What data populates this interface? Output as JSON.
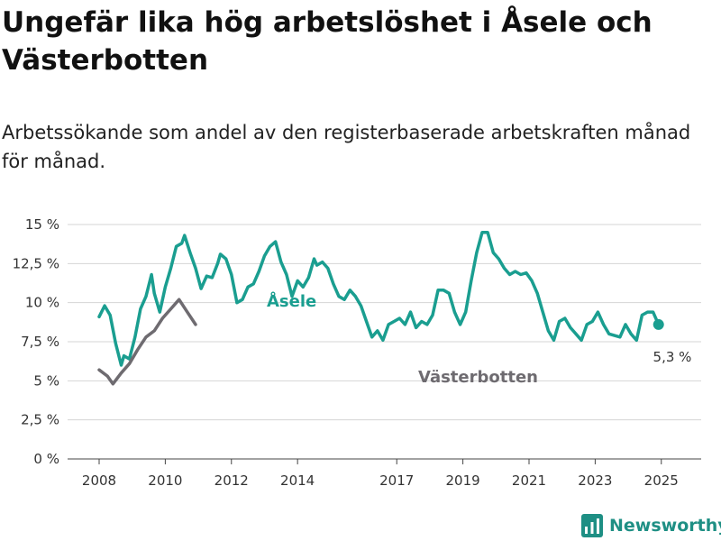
{
  "title": "Ungefär lika hög arbetslöshet i Åsele och Västerbotten",
  "subtitle": "Arbetssökande som andel av den registerbaserade arbetskraften månad för månad.",
  "brand": "Newsworthy",
  "colors": {
    "asele": "#1a9e90",
    "vasterbotten": "#6e6b70",
    "grid": "#d4d4d4",
    "axis": "#444444",
    "logo": "#1e8f84"
  },
  "chart_data": {
    "type": "line",
    "title": "Ungefär lika hög arbetslöshet i Åsele och Västerbotten",
    "subtitle": "Arbetssökande som andel av den registerbaserade arbetskraften månad för månad.",
    "xlabel": "",
    "ylabel": "",
    "x_ticks": [
      "2008",
      "2010",
      "2012",
      "2014",
      "2017",
      "2019",
      "2021",
      "2023",
      "2025"
    ],
    "xlim": [
      "2008-01",
      "2025-05"
    ],
    "y_ticks": [
      "0 %",
      "2,5 %",
      "5 %",
      "7,5 %",
      "10 %",
      "12,5 %",
      "15 %"
    ],
    "ylim": [
      0,
      15
    ],
    "grid": "horizontal",
    "end_label": "5,3 %",
    "series": [
      {
        "name": "Åsele",
        "points": [
          [
            "2008-01",
            9.1
          ],
          [
            "2008-03",
            9.8
          ],
          [
            "2008-05",
            9.2
          ],
          [
            "2008-07",
            7.4
          ],
          [
            "2008-09",
            6.0
          ],
          [
            "2008-10",
            6.6
          ],
          [
            "2008-12",
            6.4
          ],
          [
            "2009-02",
            7.8
          ],
          [
            "2009-04",
            9.6
          ],
          [
            "2009-06",
            10.4
          ],
          [
            "2009-08",
            11.8
          ],
          [
            "2009-09",
            10.6
          ],
          [
            "2009-11",
            9.4
          ],
          [
            "2010-01",
            11.0
          ],
          [
            "2010-03",
            12.2
          ],
          [
            "2010-05",
            13.6
          ],
          [
            "2010-07",
            13.8
          ],
          [
            "2010-08",
            14.3
          ],
          [
            "2010-10",
            13.2
          ],
          [
            "2010-12",
            12.2
          ],
          [
            "2011-02",
            10.9
          ],
          [
            "2011-04",
            11.7
          ],
          [
            "2011-06",
            11.6
          ],
          [
            "2011-08",
            12.5
          ],
          [
            "2011-09",
            13.1
          ],
          [
            "2011-11",
            12.8
          ],
          [
            "2012-01",
            11.8
          ],
          [
            "2012-03",
            10.0
          ],
          [
            "2012-05",
            10.2
          ],
          [
            "2012-07",
            11.0
          ],
          [
            "2012-09",
            11.2
          ],
          [
            "2012-11",
            12.0
          ],
          [
            "2013-01",
            13.0
          ],
          [
            "2013-03",
            13.6
          ],
          [
            "2013-05",
            13.9
          ],
          [
            "2013-07",
            12.6
          ],
          [
            "2013-09",
            11.8
          ],
          [
            "2013-11",
            10.4
          ],
          [
            "2014-01",
            11.4
          ],
          [
            "2014-03",
            11.0
          ],
          [
            "2014-05",
            11.6
          ],
          [
            "2014-07",
            12.8
          ],
          [
            "2014-08",
            12.4
          ],
          [
            "2014-10",
            12.6
          ],
          [
            "2014-12",
            12.2
          ],
          [
            "2015-02",
            11.2
          ],
          [
            "2015-04",
            10.4
          ],
          [
            "2015-06",
            10.2
          ],
          [
            "2015-08",
            10.8
          ],
          [
            "2015-10",
            10.4
          ],
          [
            "2015-12",
            9.8
          ],
          [
            "2016-02",
            8.8
          ],
          [
            "2016-04",
            7.8
          ],
          [
            "2016-06",
            8.2
          ],
          [
            "2016-08",
            7.6
          ],
          [
            "2016-10",
            8.6
          ],
          [
            "2016-12",
            8.8
          ],
          [
            "2017-02",
            9.0
          ],
          [
            "2017-04",
            8.6
          ],
          [
            "2017-06",
            9.4
          ],
          [
            "2017-08",
            8.4
          ],
          [
            "2017-10",
            8.8
          ],
          [
            "2017-12",
            8.6
          ],
          [
            "2018-02",
            9.2
          ],
          [
            "2018-04",
            10.8
          ],
          [
            "2018-06",
            10.8
          ],
          [
            "2018-08",
            10.6
          ],
          [
            "2018-10",
            9.4
          ],
          [
            "2018-12",
            8.6
          ],
          [
            "2019-02",
            9.4
          ],
          [
            "2019-04",
            11.4
          ],
          [
            "2019-06",
            13.2
          ],
          [
            "2019-08",
            14.5
          ],
          [
            "2019-10",
            14.5
          ],
          [
            "2019-12",
            13.2
          ],
          [
            "2020-02",
            12.8
          ],
          [
            "2020-04",
            12.2
          ],
          [
            "2020-06",
            11.8
          ],
          [
            "2020-08",
            12.0
          ],
          [
            "2020-10",
            11.8
          ],
          [
            "2020-12",
            11.9
          ],
          [
            "2021-02",
            11.4
          ],
          [
            "2021-04",
            10.6
          ],
          [
            "2021-06",
            9.4
          ],
          [
            "2021-08",
            8.2
          ],
          [
            "2021-10",
            7.6
          ],
          [
            "2021-12",
            8.8
          ],
          [
            "2022-02",
            9.0
          ],
          [
            "2022-04",
            8.4
          ],
          [
            "2022-06",
            8.0
          ],
          [
            "2022-08",
            7.6
          ],
          [
            "2022-10",
            8.6
          ],
          [
            "2022-12",
            8.8
          ],
          [
            "2023-02",
            9.4
          ],
          [
            "2023-04",
            8.6
          ],
          [
            "2023-06",
            8.0
          ],
          [
            "2023-08",
            7.9
          ],
          [
            "2023-10",
            7.8
          ],
          [
            "2023-12",
            8.6
          ],
          [
            "2024-02",
            8.0
          ],
          [
            "2024-04",
            7.6
          ],
          [
            "2024-06",
            9.2
          ],
          [
            "2024-08",
            9.4
          ],
          [
            "2024-10",
            9.4
          ],
          [
            "2024-12",
            8.6
          ]
        ]
      },
      {
        "name": "Västerbotten",
        "points": [
          [
            "2008-01",
            5.7
          ],
          [
            "2008-04",
            5.3
          ],
          [
            "2008-06",
            4.8
          ],
          [
            "2008-09",
            5.5
          ],
          [
            "2008-12",
            6.1
          ],
          [
            "2009-03",
            7.0
          ],
          [
            "2009-06",
            7.8
          ],
          [
            "2009-09",
            8.2
          ],
          [
            "2009-12",
            9.0
          ],
          [
            "2010-03",
            9.6
          ],
          [
            "2010-06",
            10.2
          ],
          [
            "2010-09",
            9.4
          ],
          [
            "2010-12",
            8.6
          ]
        ]
      }
    ]
  }
}
